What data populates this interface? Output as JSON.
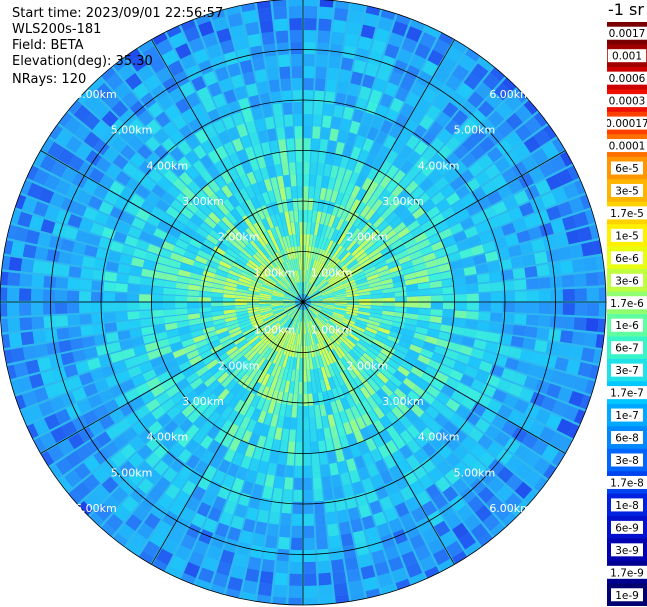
{
  "header": {
    "start_time": "Start time: 2023/09/01 22:56:57",
    "instrument": "WLS200s-181",
    "field": "Field: BETA",
    "elevation": "Elevation(deg): 35.30",
    "nrays": "NRays: 120"
  },
  "chart_data": {
    "type": "heatmap",
    "projection": "polar",
    "n_rays": 120,
    "ring_labels": [
      "1.00km",
      "2.00km",
      "3.00km",
      "4.00km",
      "5.00km",
      "6.00km"
    ],
    "max_range_km": 6.0,
    "colorbar": {
      "unit": "-1 sr",
      "ticks": [
        "0.0017",
        "0.001",
        "0.0006",
        "0.0003",
        "0.00017",
        "0.0001",
        "6e-5",
        "3e-5",
        "1.7e-5",
        "1e-5",
        "6e-6",
        "3e-6",
        "1.7e-6",
        "1e-6",
        "6e-7",
        "3e-7",
        "1.7e-7",
        "1e-7",
        "6e-8",
        "3e-8",
        "1.7e-8",
        "1e-8",
        "6e-9",
        "3e-9",
        "1.7e-9",
        "1e-9"
      ],
      "colors": [
        "#7a0000",
        "#a00000",
        "#cc0000",
        "#ee1000",
        "#ff4000",
        "#ff7000",
        "#ff9500",
        "#ffb400",
        "#ffd200",
        "#fff000",
        "#e8ff10",
        "#c0ff40",
        "#90ff70",
        "#60ffa0",
        "#38f5c8",
        "#20e0e8",
        "#00c8ff",
        "#00a8ff",
        "#0088ff",
        "#0066ff",
        "#0044f0",
        "#0022e0",
        "#0010cc",
        "#0000b0",
        "#000090",
        "#000070"
      ]
    }
  }
}
